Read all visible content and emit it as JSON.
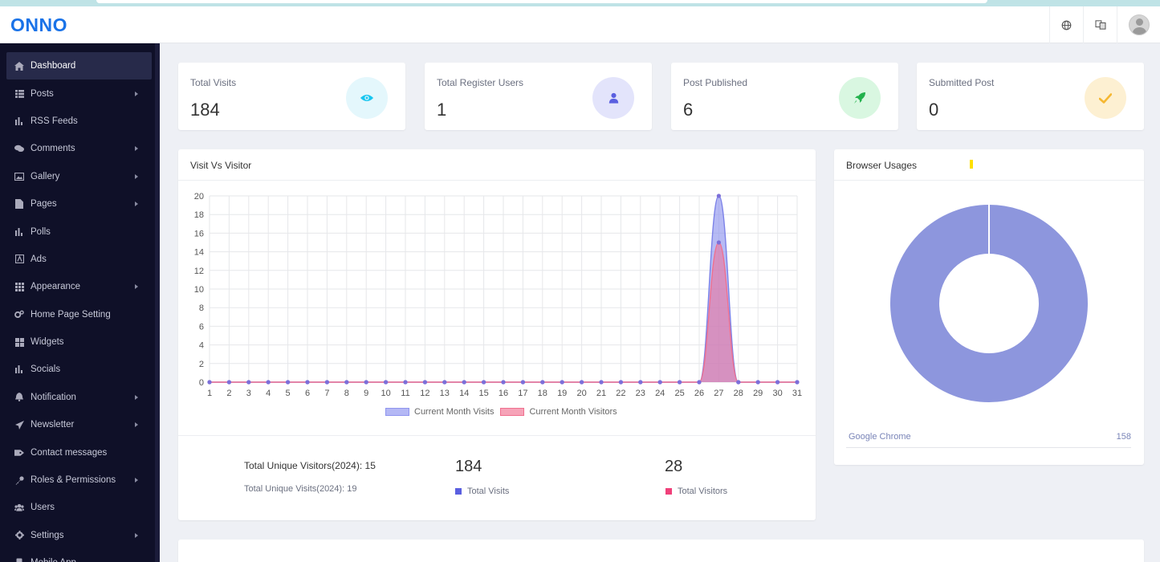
{
  "app": {
    "logo": "ONNO"
  },
  "sidebar": {
    "items": [
      {
        "label": "Dashboard",
        "icon": "home-icon",
        "active": true,
        "has_children": false
      },
      {
        "label": "Posts",
        "icon": "list-icon",
        "has_children": true
      },
      {
        "label": "RSS Feeds",
        "icon": "bar-chart-icon",
        "has_children": false
      },
      {
        "label": "Comments",
        "icon": "comments-icon",
        "has_children": true
      },
      {
        "label": "Gallery",
        "icon": "image-icon",
        "has_children": true
      },
      {
        "label": "Pages",
        "icon": "file-icon",
        "has_children": true
      },
      {
        "label": "Polls",
        "icon": "bar-chart-icon",
        "has_children": false
      },
      {
        "label": "Ads",
        "icon": "ad-icon",
        "has_children": false
      },
      {
        "label": "Appearance",
        "icon": "grid-icon",
        "has_children": true
      },
      {
        "label": "Home Page Setting",
        "icon": "cogs-icon",
        "has_children": false
      },
      {
        "label": "Widgets",
        "icon": "widgets-icon",
        "has_children": false
      },
      {
        "label": "Socials",
        "icon": "bar-chart-icon",
        "has_children": false
      },
      {
        "label": "Notification",
        "icon": "bell-icon",
        "has_children": true
      },
      {
        "label": "Newsletter",
        "icon": "paper-plane-icon",
        "has_children": true
      },
      {
        "label": "Contact messages",
        "icon": "tag-icon",
        "has_children": false
      },
      {
        "label": "Roles & Permissions",
        "icon": "key-icon",
        "has_children": true
      },
      {
        "label": "Users",
        "icon": "users-icon",
        "has_children": false
      },
      {
        "label": "Settings",
        "icon": "gear-icon",
        "has_children": true
      },
      {
        "label": "Mobile App",
        "icon": "mobile-icon",
        "has_children": false
      }
    ]
  },
  "stats": [
    {
      "title": "Total Visits",
      "value": "184",
      "icon": "eye-icon",
      "bg": "#e4f7fc",
      "color": "#18c6f0"
    },
    {
      "title": "Total Register Users",
      "value": "1",
      "icon": "user-icon",
      "bg": "#e3e4fb",
      "color": "#5a5fe0"
    },
    {
      "title": "Post Published",
      "value": "6",
      "icon": "rocket-icon",
      "bg": "#d9f7e1",
      "color": "#22b14c"
    },
    {
      "title": "Submitted Post",
      "value": "0",
      "icon": "check-icon",
      "bg": "#fdf0d2",
      "color": "#f5b731"
    }
  ],
  "visit_chart": {
    "title": "Visit Vs Visitor",
    "summary": {
      "unique_visitors": "Total Unique Visitors(2024): 15",
      "unique_visits": "Total Unique Visits(2024): 19",
      "total_visits_value": "184",
      "total_visits_label": "Total Visits",
      "total_visitors_value": "28",
      "total_visitors_label": "Total Visitors"
    }
  },
  "browser_chart": {
    "title": "Browser Usages",
    "row_name": "Google Chrome",
    "row_value": "158"
  },
  "colors": {
    "visits": "#8f95ee",
    "visitors": "#f0708f",
    "donut": "#8d96dd",
    "brand": "#1a73e8"
  },
  "chart_data": [
    {
      "type": "area",
      "title": "Visit Vs Visitor",
      "x": [
        1,
        2,
        3,
        4,
        5,
        6,
        7,
        8,
        9,
        10,
        11,
        12,
        13,
        14,
        15,
        16,
        17,
        18,
        19,
        20,
        21,
        22,
        23,
        24,
        25,
        26,
        27,
        28,
        29,
        30,
        31
      ],
      "series": [
        {
          "name": "Current Month Visits",
          "values": [
            0,
            0,
            0,
            0,
            0,
            0,
            0,
            0,
            0,
            0,
            0,
            0,
            0,
            0,
            0,
            0,
            0,
            0,
            0,
            0,
            0,
            0,
            0,
            0,
            0,
            0,
            20,
            0,
            0,
            0,
            0
          ]
        },
        {
          "name": "Current Month Visitors",
          "values": [
            0,
            0,
            0,
            0,
            0,
            0,
            0,
            0,
            0,
            0,
            0,
            0,
            0,
            0,
            0,
            0,
            0,
            0,
            0,
            0,
            0,
            0,
            0,
            0,
            0,
            0,
            15,
            0,
            0,
            0,
            0
          ]
        }
      ],
      "ylim": [
        0,
        20
      ],
      "yticks": [
        0,
        2,
        4,
        6,
        8,
        10,
        12,
        14,
        16,
        18,
        20
      ],
      "grid": true,
      "legend": "bottom"
    },
    {
      "type": "pie",
      "title": "Browser Usages",
      "categories": [
        "Google Chrome"
      ],
      "values": [
        158
      ],
      "donut": true,
      "legend": "top"
    }
  ]
}
